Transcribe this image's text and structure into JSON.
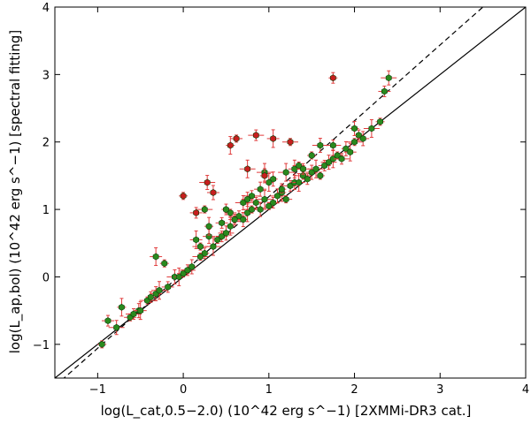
{
  "chart_data": {
    "type": "scatter",
    "xlabel": "log(L_cat,0.5−2.0)  (10^42 erg s^−1) [2XMMi-DR3 cat.]",
    "ylabel": "log(L_ap,bol)  (10^42 erg s^−1) [spectral fitting]",
    "xlim": [
      -1.5,
      4
    ],
    "ylim": [
      -1.5,
      4
    ],
    "xticks": [
      "−1",
      "0",
      "1",
      "2",
      "3",
      "4"
    ],
    "yticks": [
      "−1",
      "0",
      "1",
      "2",
      "3",
      "4"
    ],
    "xtick_values": [
      -1,
      0,
      1,
      2,
      3,
      4
    ],
    "ytick_values": [
      -1,
      0,
      1,
      2,
      3,
      4
    ],
    "grid": false,
    "colors": {
      "green": "#2a8a1e",
      "red": "#c81e1e",
      "error_bar": "#e03c3c",
      "line": "#000000"
    },
    "lines": [
      {
        "style": "solid",
        "x": [
          -1.5,
          4
        ],
        "y": [
          -1.5,
          4
        ]
      },
      {
        "style": "dashed",
        "x": [
          -1.5,
          3.5
        ],
        "y": [
          -1.62,
          4
        ]
      }
    ],
    "series": [
      {
        "marker": "green",
        "x": [
          -0.95,
          -0.88,
          -0.78,
          -0.72,
          -0.62,
          -0.58,
          -0.52,
          -0.5,
          -0.42,
          -0.38,
          -0.32,
          -0.28,
          -0.22,
          -0.18,
          -0.1,
          -0.05,
          0.0,
          0.05,
          0.1,
          0.15,
          0.2,
          0.25,
          0.3,
          0.35,
          0.4,
          0.45,
          0.5,
          0.55,
          0.6,
          0.65,
          0.7,
          0.75,
          0.8,
          0.85,
          0.9,
          0.95,
          1.0,
          1.05,
          1.1,
          1.15,
          1.2,
          1.25,
          1.3,
          1.35,
          1.4,
          1.45,
          1.5,
          1.55,
          1.6,
          1.65,
          1.7,
          1.75,
          1.8,
          1.85,
          1.9,
          1.95,
          2.0,
          2.05,
          2.1,
          2.2,
          2.3,
          2.35,
          2.4,
          0.3,
          0.55,
          0.8,
          1.05,
          1.3,
          0.2,
          0.6,
          0.9,
          1.2,
          1.5,
          0.45,
          0.7,
          1.0,
          1.35,
          1.75,
          2.0,
          -0.32,
          0.25,
          0.5,
          0.75,
          0.95,
          1.15,
          1.4,
          1.6
        ],
        "y": [
          -1.0,
          -0.65,
          -0.75,
          -0.45,
          -0.6,
          -0.55,
          -0.5,
          -0.5,
          -0.35,
          -0.3,
          -0.25,
          -0.2,
          0.2,
          -0.15,
          0.0,
          0.0,
          0.05,
          0.1,
          0.15,
          0.55,
          0.3,
          0.35,
          0.6,
          0.45,
          0.55,
          0.6,
          0.65,
          0.75,
          0.85,
          0.9,
          0.85,
          0.95,
          1.0,
          1.1,
          1.0,
          1.15,
          1.05,
          1.1,
          1.2,
          1.25,
          1.15,
          1.35,
          1.4,
          1.4,
          1.5,
          1.45,
          1.55,
          1.6,
          1.5,
          1.65,
          1.7,
          1.75,
          1.8,
          1.75,
          1.9,
          1.85,
          2.0,
          2.1,
          2.05,
          2.2,
          2.3,
          2.75,
          2.95,
          0.75,
          0.95,
          1.2,
          1.45,
          1.6,
          0.45,
          0.85,
          1.3,
          1.55,
          1.8,
          0.8,
          1.1,
          1.4,
          1.65,
          1.95,
          2.2,
          0.3,
          1.0,
          1.0,
          1.15,
          1.55,
          1.3,
          1.6,
          1.95
        ]
      },
      {
        "marker": "red",
        "x": [
          0.0,
          0.15,
          0.28,
          0.55,
          0.62,
          0.85,
          0.95,
          1.05,
          1.25,
          1.75,
          0.35,
          0.75
        ],
        "y": [
          1.2,
          0.95,
          1.4,
          1.95,
          2.05,
          2.1,
          1.5,
          2.05,
          2.0,
          2.95,
          1.25,
          1.6
        ]
      }
    ]
  }
}
